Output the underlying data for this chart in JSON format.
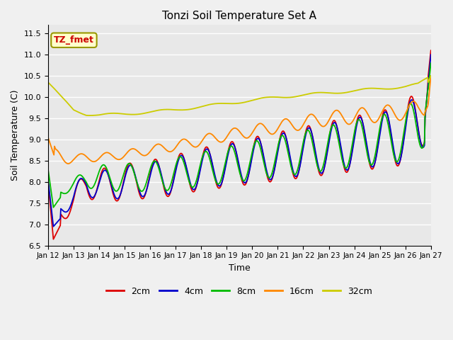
{
  "title": "Tonzi Soil Temperature Set A",
  "xlabel": "Time",
  "ylabel": "Soil Temperature (C)",
  "annotation": "TZ_fmet",
  "annotation_color": "#cc0000",
  "annotation_bg": "#ffffcc",
  "annotation_border": "#999900",
  "ylim": [
    6.5,
    11.7
  ],
  "bg_color": "#e8e8e8",
  "grid_color": "#ffffff",
  "series_colors": {
    "2cm": "#dd0000",
    "4cm": "#0000cc",
    "8cm": "#00bb00",
    "16cm": "#ff8800",
    "32cm": "#cccc00"
  },
  "x_tick_labels": [
    "Jan 12",
    "Jan 13",
    "Jan 14",
    "Jan 15",
    "Jan 16",
    "Jan 17",
    "Jan 18",
    "Jan 19",
    "Jan 20",
    "Jan 21",
    "Jan 22",
    "Jan 23",
    "Jan 24",
    "Jan 25",
    "Jan 26",
    "Jan 27"
  ],
  "legend_labels": [
    "2cm",
    "4cm",
    "8cm",
    "16cm",
    "32cm"
  ],
  "fig_facecolor": "#f0f0f0"
}
